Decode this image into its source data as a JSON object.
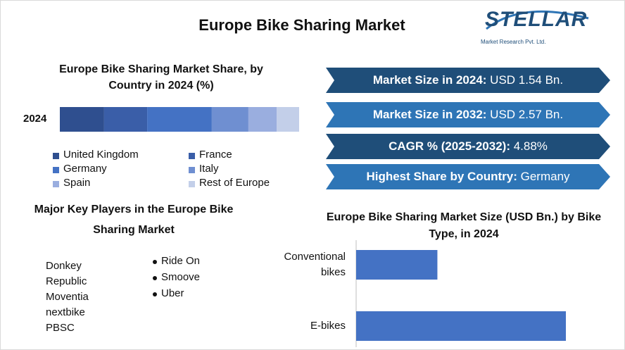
{
  "header": {
    "title": "Europe Bike Sharing Market"
  },
  "logo": {
    "name": "STELLAR",
    "tagline": "Market Research Pvt. Ltd."
  },
  "info_boxes": [
    {
      "label": "Market Size in 2024:",
      "value": "USD 1.54 Bn."
    },
    {
      "label": "Market Size in 2032:",
      "value": "USD 2.57 Bn."
    },
    {
      "label": "CAGR % (2025-2032):",
      "value": "4.88%"
    },
    {
      "label": "Highest Share by Country:",
      "value": "Germany"
    }
  ],
  "key_players": {
    "title": "Major Key Players in the Europe Bike Sharing Market",
    "left": [
      "Donkey Republic",
      "Moventia",
      "nextbike",
      "PBSC"
    ],
    "right": [
      "Ride On",
      "Smoove",
      "Uber"
    ]
  },
  "chart_data": [
    {
      "type": "stacked_bar",
      "title": "Europe Bike Sharing Market Share, by Country in 2024 (%)",
      "categories": [
        "2024"
      ],
      "series": [
        {
          "name": "United Kingdom",
          "color": "#2f4f8f",
          "values": [
            18.5
          ]
        },
        {
          "name": "France",
          "color": "#3a5ea8",
          "values": [
            18
          ]
        },
        {
          "name": "Germany",
          "color": "#4472c4",
          "values": [
            27
          ]
        },
        {
          "name": "Italy",
          "color": "#6f8fd1",
          "values": [
            15.3
          ]
        },
        {
          "name": "Spain",
          "color": "#9aaedf",
          "values": [
            11.8
          ]
        },
        {
          "name": "Rest of Europe",
          "color": "#c3cfe9",
          "values": [
            9.4
          ]
        }
      ]
    },
    {
      "type": "bar",
      "title": "Europe Bike Sharing Market Size (USD Bn.) by Bike Type, in 2024",
      "categories": [
        "Conventional bikes",
        "E-bikes"
      ],
      "values": [
        0.43,
        1.11
      ],
      "color": "#4472c4"
    }
  ]
}
